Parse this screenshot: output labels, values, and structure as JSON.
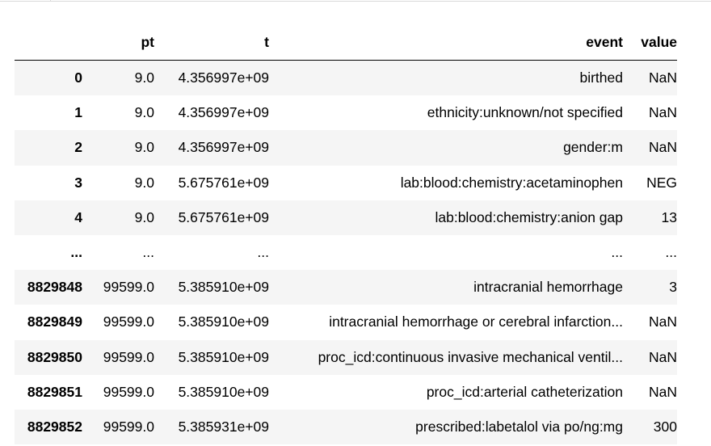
{
  "table": {
    "columns": [
      "",
      "pt",
      "t",
      "event",
      "value"
    ],
    "rows": [
      {
        "index": "0",
        "pt": "9.0",
        "t": "4.356997e+09",
        "event": "birthed",
        "value": "NaN"
      },
      {
        "index": "1",
        "pt": "9.0",
        "t": "4.356997e+09",
        "event": "ethnicity:unknown/not specified",
        "value": "NaN"
      },
      {
        "index": "2",
        "pt": "9.0",
        "t": "4.356997e+09",
        "event": "gender:m",
        "value": "NaN"
      },
      {
        "index": "3",
        "pt": "9.0",
        "t": "5.675761e+09",
        "event": "lab:blood:chemistry:acetaminophen",
        "value": "NEG"
      },
      {
        "index": "4",
        "pt": "9.0",
        "t": "5.675761e+09",
        "event": "lab:blood:chemistry:anion gap",
        "value": "13"
      },
      {
        "index": "...",
        "pt": "...",
        "t": "...",
        "event": "...",
        "value": "..."
      },
      {
        "index": "8829848",
        "pt": "99599.0",
        "t": "5.385910e+09",
        "event": "intracranial hemorrhage",
        "value": "3"
      },
      {
        "index": "8829849",
        "pt": "99599.0",
        "t": "5.385910e+09",
        "event": "intracranial hemorrhage or cerebral infarction...",
        "value": "NaN"
      },
      {
        "index": "8829850",
        "pt": "99599.0",
        "t": "5.385910e+09",
        "event": "proc_icd:continuous invasive mechanical ventil...",
        "value": "NaN"
      },
      {
        "index": "8829851",
        "pt": "99599.0",
        "t": "5.385910e+09",
        "event": "proc_icd:arterial catheterization",
        "value": "NaN"
      },
      {
        "index": "8829852",
        "pt": "99599.0",
        "t": "5.385931e+09",
        "event": "prescribed:labetalol via po/ng:mg",
        "value": "300"
      }
    ]
  }
}
